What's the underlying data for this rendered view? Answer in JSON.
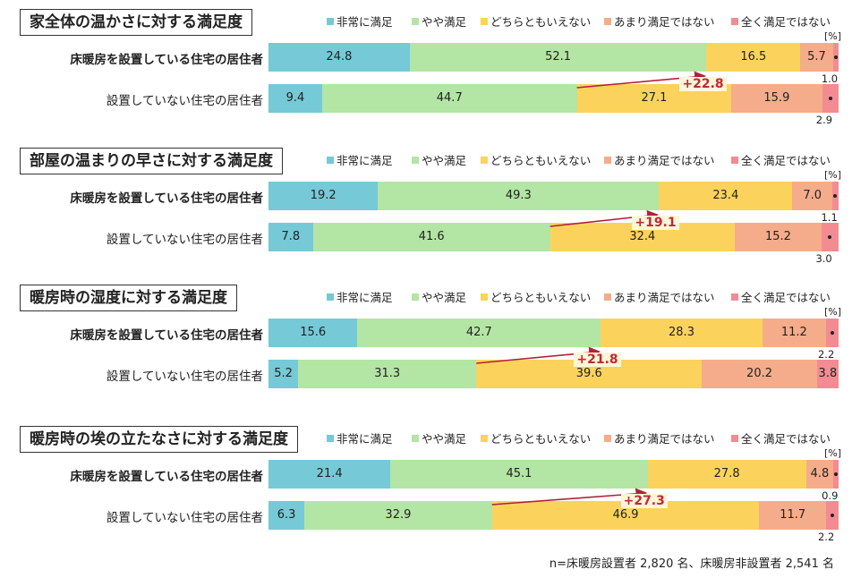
{
  "legend": [
    "非常に満足",
    "やや満足",
    "どちらともいえない",
    "あまり満足ではない",
    "全く満足ではない"
  ],
  "colors": [
    "#76c9d6",
    "#b3e5a4",
    "#fbd35c",
    "#f5ac8a",
    "#f38b92"
  ],
  "unit": "[%]",
  "footnote": "n=床暖房設置者 2,820 名、床暖房非設置者 2,541 名",
  "chart_data": [
    {
      "type": "bar",
      "title": "家全体の温かさに対する満足度",
      "categories": [
        "床暖房を設置している住宅の居住者",
        "設置していない住宅の居住者"
      ],
      "series": [
        {
          "name": "非常に満足",
          "values": [
            24.8,
            9.4
          ]
        },
        {
          "name": "やや満足",
          "values": [
            52.1,
            44.7
          ]
        },
        {
          "name": "どちらともいえない",
          "values": [
            16.5,
            27.1
          ]
        },
        {
          "name": "あまり満足ではない",
          "values": [
            5.7,
            15.9
          ]
        },
        {
          "name": "全く満足ではない",
          "values": [
            1.0,
            2.9
          ]
        }
      ],
      "difference": "+22.8",
      "ylabel": "[%]"
    },
    {
      "type": "bar",
      "title": "部屋の温まりの早さに対する満足度",
      "categories": [
        "床暖房を設置している住宅の居住者",
        "設置していない住宅の居住者"
      ],
      "series": [
        {
          "name": "非常に満足",
          "values": [
            19.2,
            7.8
          ]
        },
        {
          "name": "やや満足",
          "values": [
            49.3,
            41.6
          ]
        },
        {
          "name": "どちらともいえない",
          "values": [
            23.4,
            32.4
          ]
        },
        {
          "name": "あまり満足ではない",
          "values": [
            7.0,
            15.2
          ]
        },
        {
          "name": "全く満足ではない",
          "values": [
            1.1,
            3.0
          ]
        }
      ],
      "difference": "+19.1",
      "ylabel": "[%]"
    },
    {
      "type": "bar",
      "title": "暖房時の湿度に対する満足度",
      "categories": [
        "床暖房を設置している住宅の居住者",
        "設置していない住宅の居住者"
      ],
      "series": [
        {
          "name": "非常に満足",
          "values": [
            15.6,
            5.2
          ]
        },
        {
          "name": "やや満足",
          "values": [
            42.7,
            31.3
          ]
        },
        {
          "name": "どちらともいえない",
          "values": [
            28.3,
            39.6
          ]
        },
        {
          "name": "あまり満足ではない",
          "values": [
            11.2,
            20.2
          ]
        },
        {
          "name": "全く満足ではない",
          "values": [
            2.2,
            3.8
          ]
        }
      ],
      "difference": "+21.8",
      "ylabel": "[%]"
    },
    {
      "type": "bar",
      "title": "暖房時の埃の立たなさに対する満足度",
      "categories": [
        "床暖房を設置している住宅の居住者",
        "設置していない住宅の居住者"
      ],
      "series": [
        {
          "name": "非常に満足",
          "values": [
            21.4,
            6.3
          ]
        },
        {
          "name": "やや満足",
          "values": [
            45.1,
            32.9
          ]
        },
        {
          "name": "どちらともいえない",
          "values": [
            27.8,
            46.9
          ]
        },
        {
          "name": "あまり満足ではない",
          "values": [
            4.8,
            11.7
          ]
        },
        {
          "name": "全く満足ではない",
          "values": [
            0.9,
            2.2
          ]
        }
      ],
      "difference": "+27.3",
      "ylabel": "[%]"
    }
  ]
}
